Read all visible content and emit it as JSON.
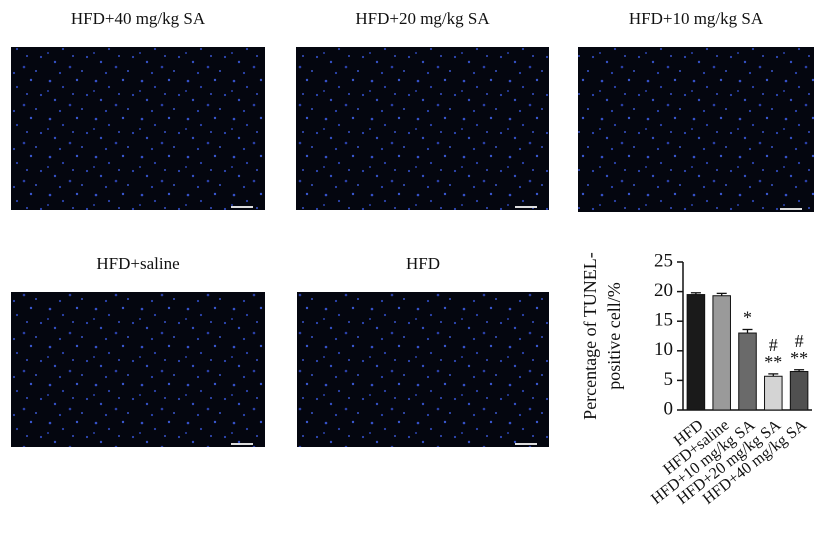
{
  "panels": [
    {
      "title": "HFD+40 mg/kg SA"
    },
    {
      "title": "HFD+20 mg/kg SA"
    },
    {
      "title": "HFD+10 mg/kg SA"
    },
    {
      "title": "HFD+saline"
    },
    {
      "title": "HFD"
    }
  ],
  "chart_data": {
    "type": "bar",
    "y_label": [
      "Percentage of TUNEL-",
      "positive cell/%"
    ],
    "categories": [
      "HFD",
      "HFD+saline",
      "HFD+10 mg/kg SA",
      "HFD+20 mg/kg SA",
      "HFD+40 mg/kg SA"
    ],
    "values": [
      19.5,
      19.3,
      13.0,
      5.7,
      6.5
    ],
    "errors": [
      0.3,
      0.4,
      0.6,
      0.4,
      0.3
    ],
    "colors": [
      "#1a1a1a",
      "#9a9a9a",
      "#6a6a6a",
      "#d4d4d4",
      "#505050"
    ],
    "significance": [
      null,
      null,
      [
        "*"
      ],
      [
        "#",
        "**"
      ],
      [
        "#",
        "**"
      ]
    ],
    "ylim": [
      0,
      25
    ],
    "yticks": [
      0,
      5,
      10,
      15,
      20,
      25
    ]
  }
}
